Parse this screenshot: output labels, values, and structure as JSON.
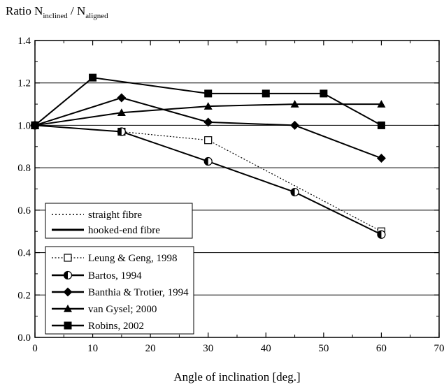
{
  "chart_data": {
    "type": "line",
    "title": "",
    "ylabel": {
      "main": "Ratio N",
      "sub1": "inclined",
      "sep": " / N",
      "sub2": "aligned"
    },
    "xlabel": "Angle of inclination [deg.]",
    "xlim": [
      0,
      70
    ],
    "ylim": [
      0.0,
      1.4
    ],
    "xticks": [
      "0",
      "10",
      "20",
      "30",
      "40",
      "50",
      "60",
      "70"
    ],
    "yticks": [
      "0.0",
      "0.2",
      "0.4",
      "0.6",
      "0.8",
      "1.0",
      "1.2",
      "1.4"
    ],
    "grid": "horizontal",
    "line_type_legend": [
      {
        "label": "straight fibre",
        "style": "dotted"
      },
      {
        "label": "hooked-end fibre",
        "style": "solid"
      }
    ],
    "series": [
      {
        "name": "Leung & Geng, 1998",
        "marker": "open-square",
        "line": "dotted",
        "x": [
          0,
          15,
          30,
          60
        ],
        "y": [
          1.0,
          0.97,
          0.93,
          0.5
        ]
      },
      {
        "name": "Bartos, 1994",
        "marker": "half-circle",
        "line": "solid",
        "x": [
          0,
          15,
          30,
          45,
          60
        ],
        "y": [
          1.0,
          0.97,
          0.83,
          0.685,
          0.485
        ]
      },
      {
        "name": "Banthia & Trotier, 1994",
        "marker": "diamond",
        "line": "solid",
        "x": [
          0,
          15,
          30,
          45,
          60
        ],
        "y": [
          1.0,
          1.13,
          1.015,
          1.0,
          0.845
        ]
      },
      {
        "name": "van Gysel; 2000",
        "marker": "triangle",
        "line": "solid",
        "x": [
          0,
          15,
          30,
          45,
          60
        ],
        "y": [
          1.0,
          1.06,
          1.09,
          1.1,
          1.1
        ]
      },
      {
        "name": "Robins, 2002",
        "marker": "filled-square",
        "line": "solid",
        "x": [
          0,
          10,
          30,
          40,
          50,
          60
        ],
        "y": [
          1.0,
          1.225,
          1.15,
          1.15,
          1.15,
          1.0
        ]
      }
    ]
  }
}
